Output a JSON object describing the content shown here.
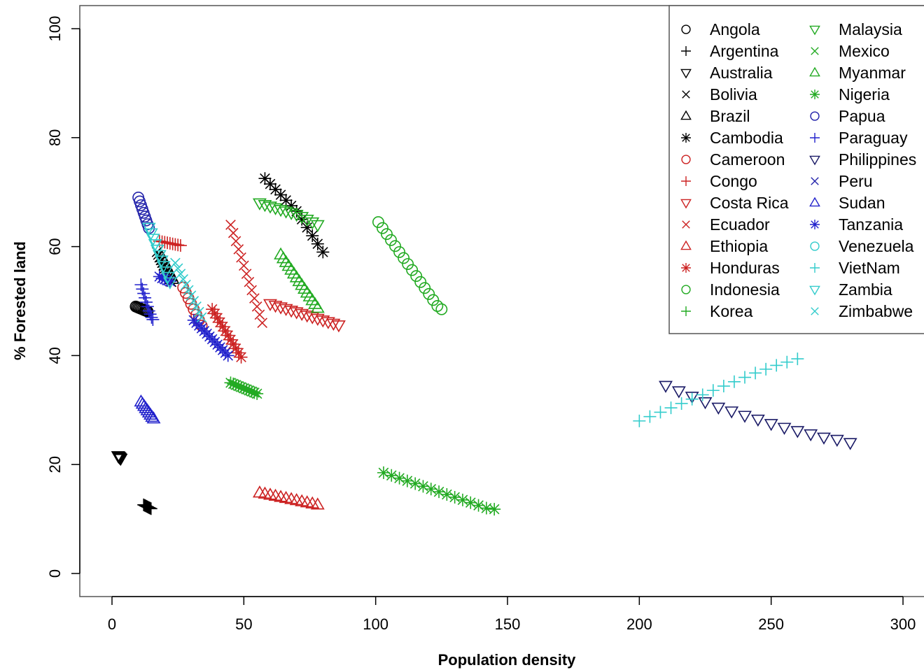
{
  "chart_data": {
    "type": "scatter",
    "title": "",
    "xlabel": "Population density",
    "ylabel": "% Forested land",
    "xlim": [
      -12,
      305
    ],
    "ylim": [
      -4,
      104
    ],
    "xticks": [
      0,
      50,
      100,
      150,
      200,
      250,
      300
    ],
    "yticks": [
      0,
      20,
      40,
      60,
      80,
      100
    ],
    "grid": false,
    "legend_position": "top-right",
    "series": [
      {
        "name": "Angola",
        "marker": "circle",
        "color": "#000000",
        "x": [
          9,
          9.5,
          10,
          10.5,
          11,
          11.5,
          12,
          12.5,
          13,
          13.5
        ],
        "y": [
          49,
          48.9,
          48.8,
          48.7,
          48.6,
          48.5,
          48.4,
          48.3,
          48.2,
          48.1
        ]
      },
      {
        "name": "Argentina",
        "marker": "plus",
        "color": "#000000",
        "x": [
          12,
          12.4,
          12.8,
          13.2,
          13.6,
          14,
          14.4,
          14.8
        ],
        "y": [
          12.6,
          12.5,
          12.4,
          12.3,
          12.2,
          12.1,
          12,
          11.9
        ]
      },
      {
        "name": "Australia",
        "marker": "triangle-down",
        "color": "#000000",
        "x": [
          2.3,
          2.5,
          2.7,
          2.9,
          3.1,
          3.3
        ],
        "y": [
          21.6,
          21.5,
          21.4,
          21.3,
          21.2,
          21.1
        ]
      },
      {
        "name": "Bolivia",
        "marker": "x",
        "color": "#000000",
        "x": [
          17,
          17.5,
          18,
          18.5,
          19,
          19.5,
          20,
          20.5,
          21,
          21.5,
          22,
          22.5
        ],
        "y": [
          59,
          58.5,
          58,
          57.5,
          57,
          56.5,
          56,
          55.5,
          55,
          54.5,
          54,
          53.5
        ]
      },
      {
        "name": "Brazil",
        "marker": "triangle-up",
        "color": "#000000",
        "x": [
          19,
          19.5,
          20,
          20.5,
          21,
          21.5,
          22,
          22.5,
          23
        ],
        "y": [
          58,
          57.5,
          57,
          56.5,
          56,
          55.5,
          55,
          54.5,
          54
        ]
      },
      {
        "name": "Cambodia",
        "marker": "asterisk",
        "color": "#000000",
        "x": [
          58,
          60,
          62,
          64,
          66,
          68,
          70,
          72,
          74,
          76,
          78,
          80
        ],
        "y": [
          72.5,
          71.5,
          70.5,
          69.5,
          68.5,
          67.5,
          66.5,
          65,
          63.5,
          62,
          60.5,
          59
        ]
      },
      {
        "name": "Cameroon",
        "marker": "circle",
        "color": "#cc2222",
        "x": [
          27,
          28,
          29,
          30,
          31,
          32,
          33,
          34
        ],
        "y": [
          52.5,
          51.5,
          50.5,
          49.5,
          48.5,
          47.5,
          46.5,
          45.5
        ]
      },
      {
        "name": "Congo",
        "marker": "plus",
        "color": "#cc2222",
        "x": [
          18,
          19,
          20,
          21,
          22,
          23,
          24,
          25,
          26
        ],
        "y": [
          61,
          60.9,
          60.8,
          60.7,
          60.6,
          60.5,
          60.4,
          60.3,
          60.2
        ]
      },
      {
        "name": "Costa Rica",
        "marker": "triangle-down",
        "color": "#cc2222",
        "x": [
          60,
          62,
          64,
          66,
          68,
          70,
          72,
          74,
          76,
          78,
          80,
          82,
          84,
          86
        ],
        "y": [
          49.5,
          49.2,
          48.9,
          48.6,
          48.3,
          48,
          47.7,
          47.4,
          47.1,
          46.8,
          46.5,
          46.2,
          45.9,
          45.6
        ]
      },
      {
        "name": "Ecuador",
        "marker": "x",
        "color": "#cc2222",
        "x": [
          45,
          46,
          47,
          48,
          49,
          50,
          51,
          52,
          53,
          54,
          55,
          56,
          57
        ],
        "y": [
          64,
          62.5,
          61,
          59.5,
          58,
          56.5,
          55,
          53.5,
          52,
          50.5,
          49,
          47.5,
          46
        ]
      },
      {
        "name": "Ethiopia",
        "marker": "triangle-up",
        "color": "#cc2222",
        "x": [
          56,
          58,
          60,
          62,
          64,
          66,
          68,
          70,
          72,
          74,
          76,
          78
        ],
        "y": [
          14.8,
          14.6,
          14.4,
          14.2,
          14,
          13.8,
          13.6,
          13.4,
          13.2,
          13,
          12.8,
          12.6
        ]
      },
      {
        "name": "Honduras",
        "marker": "asterisk",
        "color": "#cc2222",
        "x": [
          38,
          39,
          40,
          41,
          42,
          43,
          44,
          45,
          46,
          47,
          48,
          49
        ],
        "y": [
          48.5,
          47.7,
          46.9,
          46.1,
          45.3,
          44.5,
          43.7,
          42.9,
          42.1,
          41.3,
          40.5,
          39.7
        ]
      },
      {
        "name": "Indonesia",
        "marker": "circle",
        "color": "#22aa22",
        "x": [
          101,
          102.6,
          104.2,
          105.8,
          107.4,
          109,
          110.6,
          112.2,
          113.8,
          115.4,
          117,
          118.6,
          120.2,
          121.8,
          123.4,
          125
        ],
        "y": [
          64.5,
          63.4,
          62.3,
          61.2,
          60.1,
          59,
          57.9,
          56.8,
          55.7,
          54.6,
          53.5,
          52.4,
          51.3,
          50.2,
          49.1,
          48.5
        ]
      },
      {
        "name": "Korea",
        "marker": "plus",
        "color": "#22aa22",
        "x": [],
        "y": []
      },
      {
        "name": "Malaysia",
        "marker": "triangle-down",
        "color": "#22aa22",
        "x": [
          56,
          58,
          60,
          62,
          64,
          66,
          68,
          70,
          72,
          74,
          76,
          78
        ],
        "y": [
          68,
          67.7,
          67.4,
          67.1,
          66.8,
          66.5,
          66.2,
          65.9,
          65.5,
          65,
          64.5,
          64
        ]
      },
      {
        "name": "Mexico",
        "marker": "x",
        "color": "#22aa22",
        "x": [],
        "y": []
      },
      {
        "name": "Myanmar",
        "marker": "triangle-up",
        "color": "#22aa22",
        "x": [
          64,
          65,
          66,
          67,
          68,
          69,
          70,
          71,
          72,
          73,
          74,
          75,
          76,
          77,
          78
        ],
        "y": [
          58.5,
          57.8,
          57.1,
          56.4,
          55.7,
          55,
          54.3,
          53.6,
          52.9,
          52.2,
          51.5,
          50.8,
          50.1,
          49.4,
          48.7
        ]
      },
      {
        "name": "Nigeria",
        "marker": "asterisk",
        "color": "#22aa22",
        "x": [
          45,
          46,
          47,
          48,
          49,
          50,
          51,
          52,
          53,
          54,
          55,
          103,
          106,
          109,
          112,
          115,
          118,
          121,
          124,
          127,
          130,
          133,
          136,
          139,
          142,
          145
        ],
        "y": [
          35,
          34.8,
          34.6,
          34.4,
          34.2,
          34,
          33.8,
          33.6,
          33.4,
          33.2,
          33,
          18.5,
          18,
          17.5,
          17,
          16.5,
          16,
          15.5,
          15,
          14.5,
          14,
          13.5,
          13,
          12.5,
          12,
          11.8
        ]
      },
      {
        "name": "Papua",
        "marker": "circle",
        "color": "#2222aa",
        "x": [
          10,
          10.5,
          11,
          11.5,
          12,
          12.5,
          13,
          13.5,
          14
        ],
        "y": [
          69,
          68.3,
          67.6,
          66.9,
          66.2,
          65.5,
          64.8,
          64.1,
          63.4
        ]
      },
      {
        "name": "Paraguay",
        "marker": "plus",
        "color": "#2222cc",
        "x": [
          11,
          11.5,
          12,
          12.5,
          13,
          13.5,
          14,
          14.5,
          15,
          15.5
        ],
        "y": [
          53,
          52.2,
          51.4,
          50.6,
          49.8,
          49,
          48.2,
          47.6,
          47,
          46.6
        ]
      },
      {
        "name": "Philippines",
        "marker": "triangle-down",
        "color": "#1a1a66",
        "x": [
          210,
          215,
          220,
          225,
          230,
          235,
          240,
          245,
          250,
          255,
          260,
          265,
          270,
          275,
          280
        ],
        "y": [
          34.5,
          33.5,
          32.5,
          31.5,
          30.5,
          29.8,
          29,
          28.3,
          27.5,
          26.8,
          26.2,
          25.6,
          25,
          24.6,
          24
        ]
      },
      {
        "name": "Peru",
        "marker": "x",
        "color": "#2222aa",
        "x": [],
        "y": []
      },
      {
        "name": "Sudan",
        "marker": "triangle-up",
        "color": "#2222cc",
        "x": [
          11,
          11.6,
          12.2,
          12.8,
          13.4,
          14,
          14.6,
          15.2,
          15.8
        ],
        "y": [
          31.5,
          31.1,
          30.7,
          30.3,
          29.9,
          29.5,
          29.1,
          28.7,
          28.4
        ]
      },
      {
        "name": "Tanzania",
        "marker": "asterisk",
        "color": "#2222cc",
        "x": [
          18,
          19,
          20,
          21,
          22,
          31,
          32,
          33,
          34,
          35,
          36,
          37,
          38,
          39,
          40,
          41,
          42,
          43,
          44
        ],
        "y": [
          54.5,
          54.2,
          54,
          53.8,
          53.6,
          46.5,
          46,
          45.5,
          45,
          44.5,
          44,
          43.5,
          43,
          42.5,
          42,
          41.5,
          41,
          40.5,
          40
        ]
      },
      {
        "name": "Venezuela",
        "marker": "circle",
        "color": "#33cccc",
        "x": [],
        "y": []
      },
      {
        "name": "VietNam",
        "marker": "plus",
        "color": "#33cccc",
        "x": [
          200,
          204,
          208,
          212,
          216,
          220,
          224,
          228,
          232,
          236,
          240,
          244,
          248,
          252,
          256,
          260
        ],
        "y": [
          28,
          28.8,
          29.6,
          30.4,
          31.2,
          32,
          32.8,
          33.6,
          34.4,
          35.2,
          36,
          36.8,
          37.5,
          38.2,
          38.8,
          39.4
        ]
      },
      {
        "name": "Zambia",
        "marker": "triangle-down",
        "color": "#33cccc",
        "x": [
          14,
          14.8,
          15.6,
          16.4,
          17.2,
          18,
          18.8,
          19.6,
          20.4,
          21.2,
          22
        ],
        "y": [
          63.5,
          62.5,
          61.5,
          60.5,
          59.5,
          58.5,
          57.5,
          56.5,
          55.5,
          54.5,
          53.5
        ]
      },
      {
        "name": "Zimbabwe",
        "marker": "x",
        "color": "#33cccc",
        "x": [
          24,
          25,
          26,
          27,
          28,
          29,
          30,
          31,
          32,
          33,
          34
        ],
        "y": [
          57,
          56,
          55,
          54,
          53,
          52,
          51,
          50,
          49,
          48,
          47
        ]
      }
    ]
  }
}
